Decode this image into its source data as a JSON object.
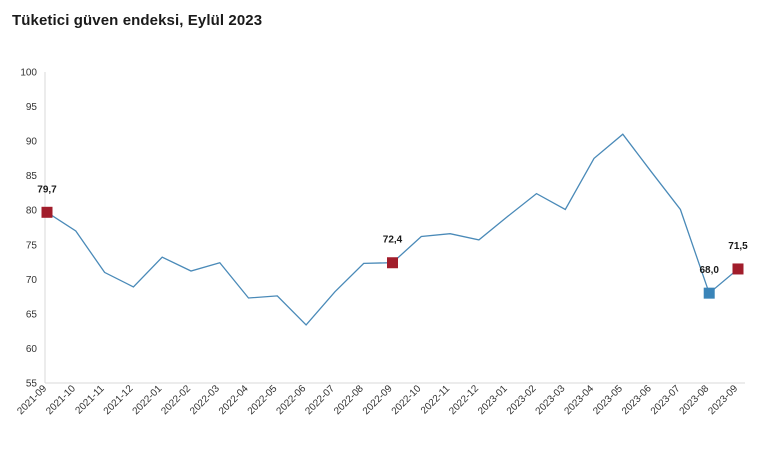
{
  "chart_data": {
    "type": "line",
    "title": "Tüketici güven endeksi, Eylül 2023",
    "xlabel": "",
    "ylabel": "",
    "ylim": [
      55,
      100
    ],
    "yticks": [
      55,
      60,
      65,
      70,
      75,
      80,
      85,
      90,
      95,
      100
    ],
    "grid": false,
    "legend": "none",
    "line_color": "#4a8ab8",
    "categories": [
      "2021-09",
      "2021-10",
      "2021-11",
      "2021-12",
      "2022-01",
      "2022-02",
      "2022-03",
      "2022-04",
      "2022-05",
      "2022-06",
      "2022-07",
      "2022-08",
      "2022-09",
      "2022-10",
      "2022-11",
      "2022-12",
      "2023-01",
      "2023-02",
      "2023-03",
      "2023-04",
      "2023-05",
      "2023-06",
      "2023-07",
      "2023-08",
      "2023-09"
    ],
    "values": [
      79.7,
      77.0,
      71.0,
      68.9,
      73.2,
      71.2,
      72.4,
      67.3,
      67.6,
      63.4,
      68.2,
      72.3,
      72.4,
      76.2,
      76.6,
      75.7,
      79.1,
      82.4,
      80.1,
      87.5,
      91.0,
      85.5,
      80.1,
      68.0,
      71.5
    ],
    "markers": [
      {
        "index": 0,
        "label": "79,7",
        "color": "#a11d2b"
      },
      {
        "index": 12,
        "label": "72,4",
        "color": "#a11d2b"
      },
      {
        "index": 23,
        "label": "68,0",
        "color": "#3a84b8"
      },
      {
        "index": 24,
        "label": "71,5",
        "color": "#a11d2b"
      }
    ]
  }
}
